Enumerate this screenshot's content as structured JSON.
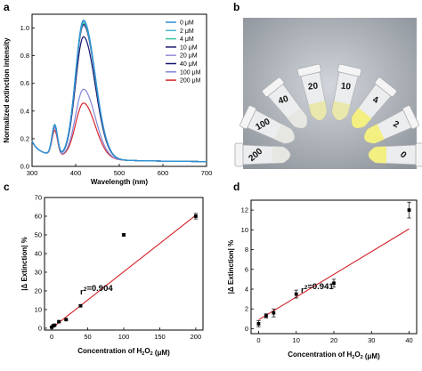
{
  "chart_data": [
    {
      "panel": "a",
      "type": "line",
      "xlabel": "Wavelength (nm)",
      "ylabel": "Normalized extinction intensity",
      "xlim": [
        300,
        700
      ],
      "ylim": [
        0.0,
        1.1
      ],
      "xticks": [
        300,
        400,
        500,
        600,
        700
      ],
      "yticks": [
        0.0,
        0.2,
        0.4,
        0.6,
        0.8,
        1.0
      ],
      "legend_position": "top-right",
      "series": [
        {
          "name": "0 μM",
          "color": "#2f8fd8",
          "peak": 1.0,
          "shoulder": 0.22
        },
        {
          "name": "2 μM",
          "color": "#4bb8c9",
          "peak": 0.99,
          "shoulder": 0.22
        },
        {
          "name": "4 μM",
          "color": "#37c49a",
          "peak": 0.98,
          "shoulder": 0.22
        },
        {
          "name": "10 μM",
          "color": "#1a1a6e",
          "peak": 0.97,
          "shoulder": 0.22
        },
        {
          "name": "20 μM",
          "color": "#9a8fd6",
          "peak": 0.96,
          "shoulder": 0.21
        },
        {
          "name": "40 μM",
          "color": "#17156b",
          "peak": 0.88,
          "shoulder": 0.21
        },
        {
          "name": "100 μM",
          "color": "#8585d8",
          "peak": 0.5,
          "shoulder": 0.2
        },
        {
          "name": "200 μM",
          "color": "#d6272e",
          "peak": 0.4,
          "shoulder": 0.18
        }
      ]
    },
    {
      "panel": "b",
      "type": "photo",
      "vial_labels": [
        "200",
        "100",
        "40",
        "20",
        "10",
        "4",
        "2",
        "0"
      ]
    },
    {
      "panel": "c",
      "type": "scatter",
      "xlabel": "Concentration of H2O2 (μM)",
      "ylabel": "|Δ Extinction| %",
      "xlim": [
        -10,
        210
      ],
      "ylim": [
        -1,
        70
      ],
      "xticks": [
        0,
        50,
        100,
        150,
        200
      ],
      "yticks": [
        0,
        10,
        20,
        30,
        40,
        50,
        60,
        70
      ],
      "x": [
        0,
        2,
        4,
        10,
        20,
        40,
        100,
        200
      ],
      "y": [
        0.5,
        1.3,
        1.6,
        3.5,
        4.6,
        12,
        50,
        60
      ],
      "yerr": [
        0.3,
        0.3,
        0.3,
        0.4,
        0.4,
        0.6,
        0.6,
        1.5
      ],
      "fit_line": {
        "x": [
          0,
          200
        ],
        "y": [
          0.0,
          60.5
        ],
        "color": "#d21f26"
      },
      "annotation": "r2=0.904"
    },
    {
      "panel": "d",
      "type": "scatter",
      "xlabel": "Concentration of H2O2 (μM)",
      "ylabel": "|Δ Extinction| %",
      "xlim": [
        -2,
        42
      ],
      "ylim": [
        -0.5,
        13
      ],
      "xticks": [
        0,
        10,
        20,
        30,
        40
      ],
      "yticks": [
        0,
        2,
        4,
        6,
        8,
        10,
        12
      ],
      "x": [
        0,
        2,
        4,
        10,
        20,
        40
      ],
      "y": [
        0.5,
        1.3,
        1.6,
        3.5,
        4.6,
        12
      ],
      "yerr": [
        0.3,
        0.2,
        0.4,
        0.4,
        0.4,
        0.8
      ],
      "fit_line": {
        "x": [
          0,
          40
        ],
        "y": [
          0.9,
          10.1
        ],
        "color": "#d21f26"
      },
      "annotation": "r2=0.941"
    }
  ],
  "panel_letters": [
    "a",
    "b",
    "c",
    "d"
  ]
}
